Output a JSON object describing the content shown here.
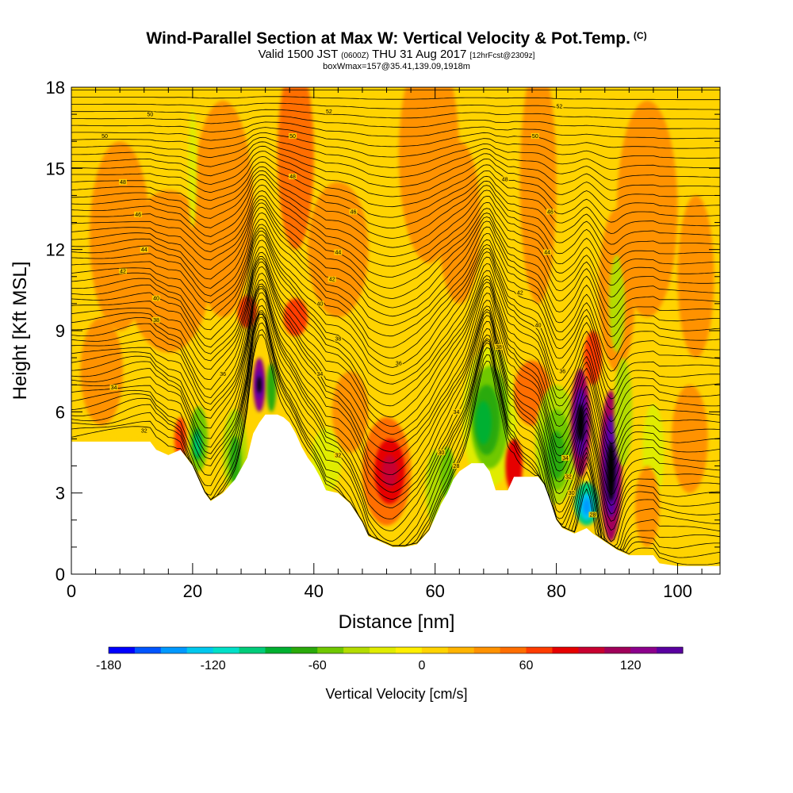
{
  "header": {
    "title": "Wind-Parallel Section at Max W: Vertical Velocity & Pot.Temp.",
    "copyright": "(C)",
    "subtitle_valid": "Valid 1500 JST",
    "subtitle_z": "(0600Z)",
    "subtitle_date": "THU 31 Aug 2017",
    "subtitle_fcst": "[12hrFcst@2309z]",
    "info": "boxWmax=157@35.41,139.09,1918m"
  },
  "chart_data": {
    "type": "heatmap",
    "title": "Wind-Parallel Section at Max W: Vertical Velocity & Pot.Temp.",
    "xlabel": "Distance [nm]",
    "ylabel": "Height [Kft MSL]",
    "xlim": [
      0,
      107
    ],
    "ylim": [
      0,
      18
    ],
    "x_ticks": [
      0,
      20,
      40,
      60,
      80,
      100
    ],
    "y_ticks": [
      0,
      3,
      6,
      9,
      12,
      15,
      18
    ],
    "x_tick_labels": [
      "0",
      "20",
      "40",
      "60",
      "80",
      "100"
    ],
    "y_tick_labels": [
      "0",
      "3",
      "6",
      "9",
      "12",
      "15",
      "18"
    ],
    "background_level": 12,
    "terrain": [
      [
        0,
        4.9
      ],
      [
        13,
        4.9
      ],
      [
        14,
        4.6
      ],
      [
        16,
        4.4
      ],
      [
        18,
        4.6
      ],
      [
        20,
        4.0
      ],
      [
        21,
        3.5
      ],
      [
        22,
        3.0
      ],
      [
        23,
        2.7
      ],
      [
        25,
        3.0
      ],
      [
        27,
        3.5
      ],
      [
        29,
        4.3
      ],
      [
        30,
        5.2
      ],
      [
        31,
        5.6
      ],
      [
        32,
        5.9
      ],
      [
        33,
        5.9
      ],
      [
        34,
        5.9
      ],
      [
        35,
        5.8
      ],
      [
        36,
        5.6
      ],
      [
        37,
        5.2
      ],
      [
        38,
        4.7
      ],
      [
        39,
        4.3
      ],
      [
        40,
        4.0
      ],
      [
        41,
        3.6
      ],
      [
        42,
        3.1
      ],
      [
        44,
        3.0
      ],
      [
        46,
        2.6
      ],
      [
        48,
        1.9
      ],
      [
        49,
        1.4
      ],
      [
        51,
        1.2
      ],
      [
        53,
        1.0
      ],
      [
        55,
        1.0
      ],
      [
        57,
        1.1
      ],
      [
        59,
        1.6
      ],
      [
        60,
        2.1
      ],
      [
        61,
        2.6
      ],
      [
        62,
        3.0
      ],
      [
        63,
        3.5
      ],
      [
        64,
        3.8
      ],
      [
        66,
        4.1
      ],
      [
        68,
        4.1
      ],
      [
        69,
        3.8
      ],
      [
        70,
        3.1
      ],
      [
        72,
        3.1
      ],
      [
        73,
        3.6
      ],
      [
        75,
        3.6
      ],
      [
        77,
        3.6
      ],
      [
        78,
        3.3
      ],
      [
        79,
        2.7
      ],
      [
        80,
        2.0
      ],
      [
        81,
        1.7
      ],
      [
        83,
        1.5
      ],
      [
        85,
        1.7
      ],
      [
        86,
        1.5
      ],
      [
        88,
        1.2
      ],
      [
        90,
        0.9
      ],
      [
        92,
        0.7
      ],
      [
        96,
        0.7
      ],
      [
        97,
        0.4
      ],
      [
        100,
        0.3
      ],
      [
        104,
        0.3
      ],
      [
        107,
        0.3
      ]
    ],
    "cells": [
      {
        "x": 31,
        "y": 7.0,
        "sx": 1.0,
        "sy": 1.0,
        "level": 20,
        "ridge": true
      },
      {
        "x": 31,
        "y": 7.0,
        "sx": 0.6,
        "sy": 0.55,
        "level": 21
      },
      {
        "x": 31,
        "y": 7.0,
        "sx": 0.35,
        "sy": 0.3,
        "level": 22
      },
      {
        "x": 33,
        "y": 6.9,
        "sx": 0.8,
        "sy": 0.9,
        "level": 7
      },
      {
        "x": 37,
        "y": 9.5,
        "sx": 2.0,
        "sy": 0.7,
        "level": 16
      },
      {
        "x": 29,
        "y": 9.7,
        "sx": 1.6,
        "sy": 0.6,
        "level": 16
      },
      {
        "x": 16,
        "y": 11.2,
        "sx": 7.0,
        "sy": 3.0,
        "level": 14
      },
      {
        "x": 8,
        "y": 12.5,
        "sx": 5.0,
        "sy": 3.5,
        "level": 14
      },
      {
        "x": 25,
        "y": 13.5,
        "sx": 5.0,
        "sy": 4.0,
        "level": 14
      },
      {
        "x": 37,
        "y": 15.5,
        "sx": 3.0,
        "sy": 3.5,
        "level": 15
      },
      {
        "x": 18,
        "y": 5.0,
        "sx": 1.0,
        "sy": 0.8,
        "level": 16
      },
      {
        "x": 21,
        "y": 5.0,
        "sx": 1.5,
        "sy": 1.2,
        "level": 8
      },
      {
        "x": 20.8,
        "y": 4.8,
        "sx": 0.8,
        "sy": 0.6,
        "level": 6
      },
      {
        "x": 20.8,
        "y": 4.8,
        "sx": 0.4,
        "sy": 0.4,
        "level": 5
      },
      {
        "x": 27,
        "y": 4.5,
        "sx": 2.0,
        "sy": 1.6,
        "level": 9
      },
      {
        "x": 27,
        "y": 4.2,
        "sx": 1.0,
        "sy": 0.9,
        "level": 7
      },
      {
        "x": 42,
        "y": 4.2,
        "sx": 2.5,
        "sy": 1.2,
        "level": 10
      },
      {
        "x": 52,
        "y": 3.8,
        "sx": 4.0,
        "sy": 2.0,
        "level": 15
      },
      {
        "x": 52.5,
        "y": 3.8,
        "sx": 2.5,
        "sy": 1.2,
        "level": 17
      },
      {
        "x": 52.5,
        "y": 3.8,
        "sx": 1.3,
        "sy": 0.6,
        "level": 18
      },
      {
        "x": 44,
        "y": 12.0,
        "sx": 5.0,
        "sy": 2.5,
        "level": 14
      },
      {
        "x": 60,
        "y": 3.2,
        "sx": 1.5,
        "sy": 1.4,
        "level": 9
      },
      {
        "x": 62,
        "y": 3.7,
        "sx": 1.2,
        "sy": 1.0,
        "level": 8
      },
      {
        "x": 69,
        "y": 5.8,
        "sx": 4.5,
        "sy": 2.6,
        "level": 10
      },
      {
        "x": 69,
        "y": 5.8,
        "sx": 3.2,
        "sy": 1.9,
        "level": 8
      },
      {
        "x": 68.5,
        "y": 5.7,
        "sx": 2.2,
        "sy": 1.3,
        "level": 7
      },
      {
        "x": 68,
        "y": 5.6,
        "sx": 1.3,
        "sy": 0.8,
        "level": 6
      },
      {
        "x": 73,
        "y": 4.0,
        "sx": 1.4,
        "sy": 1.0,
        "level": 17
      },
      {
        "x": 76,
        "y": 6.7,
        "sx": 3.0,
        "sy": 1.2,
        "level": 15
      },
      {
        "x": 80,
        "y": 4.8,
        "sx": 3.5,
        "sy": 2.2,
        "level": 9
      },
      {
        "x": 80,
        "y": 4.6,
        "sx": 2.4,
        "sy": 1.5,
        "level": 8
      },
      {
        "x": 80,
        "y": 4.4,
        "sx": 1.4,
        "sy": 0.9,
        "level": 7
      },
      {
        "x": 85,
        "y": 2.6,
        "sx": 2.0,
        "sy": 0.8,
        "level": 5
      },
      {
        "x": 85,
        "y": 2.5,
        "sx": 1.2,
        "sy": 0.5,
        "level": 3
      },
      {
        "x": 85,
        "y": 2.5,
        "sx": 0.6,
        "sy": 0.3,
        "level": 2
      },
      {
        "x": 84,
        "y": 5.6,
        "sx": 1.6,
        "sy": 2.0,
        "level": 19
      },
      {
        "x": 84,
        "y": 5.6,
        "sx": 1.1,
        "sy": 1.3,
        "level": 21
      },
      {
        "x": 84,
        "y": 5.6,
        "sx": 0.6,
        "sy": 0.7,
        "level": 22
      },
      {
        "x": 89,
        "y": 4.0,
        "sx": 1.8,
        "sy": 2.8,
        "level": 19
      },
      {
        "x": 89,
        "y": 4.0,
        "sx": 1.2,
        "sy": 1.9,
        "level": 21
      },
      {
        "x": 89,
        "y": 3.8,
        "sx": 0.7,
        "sy": 1.1,
        "level": 22
      },
      {
        "x": 86,
        "y": 8.0,
        "sx": 1.5,
        "sy": 1.0,
        "level": 16
      },
      {
        "x": 90,
        "y": 10.5,
        "sx": 3.0,
        "sy": 3.0,
        "level": 14
      },
      {
        "x": 90,
        "y": 10.0,
        "sx": 1.3,
        "sy": 1.8,
        "level": 9
      },
      {
        "x": 91,
        "y": 6.0,
        "sx": 1.5,
        "sy": 2.0,
        "level": 9
      },
      {
        "x": 96,
        "y": 4.5,
        "sx": 1.8,
        "sy": 1.8,
        "level": 10
      },
      {
        "x": 95,
        "y": 2.5,
        "sx": 2.0,
        "sy": 1.5,
        "level": 14
      },
      {
        "x": 95,
        "y": 13.5,
        "sx": 5.0,
        "sy": 4.0,
        "level": 14
      },
      {
        "x": 103,
        "y": 11.0,
        "sx": 3.0,
        "sy": 3.0,
        "level": 14
      },
      {
        "x": 102,
        "y": 5.0,
        "sx": 3.0,
        "sy": 2.0,
        "level": 14
      },
      {
        "x": 59,
        "y": 15.5,
        "sx": 5.0,
        "sy": 4.0,
        "level": 14
      },
      {
        "x": 64,
        "y": 13.0,
        "sx": 3.5,
        "sy": 3.0,
        "level": 14
      },
      {
        "x": 77,
        "y": 14.5,
        "sx": 3.0,
        "sy": 4.5,
        "level": 14
      },
      {
        "x": 5,
        "y": 7.5,
        "sx": 3.5,
        "sy": 2.0,
        "level": 14
      },
      {
        "x": 46,
        "y": 6.0,
        "sx": 3.0,
        "sy": 1.5,
        "level": 14
      },
      {
        "x": 20,
        "y": 15.0,
        "sx": 0.7,
        "sy": 2.2,
        "level": 10
      }
    ],
    "theta_lines": {
      "count": 52,
      "top": 17.9,
      "descend": [
        [
          31,
          3.2,
          2.5,
          4.5
        ],
        [
          52,
          -1.5,
          5.0,
          3.0
        ],
        [
          69,
          4.0,
          3.0,
          3.5
        ],
        [
          80,
          -2.0,
          2.5,
          3.5
        ],
        [
          85,
          1.5,
          1.5,
          2.0
        ],
        [
          89,
          -2.5,
          2.0,
          3.0
        ],
        [
          21,
          -1.0,
          3.0,
          2.5
        ],
        [
          12,
          0.5,
          6.0,
          3.0
        ]
      ]
    },
    "theta_labels": [
      {
        "x": 13,
        "y": 17.0,
        "text": "50"
      },
      {
        "x": 5.5,
        "y": 16.2,
        "text": "50"
      },
      {
        "x": 8.5,
        "y": 14.5,
        "text": "48"
      },
      {
        "x": 11,
        "y": 13.3,
        "text": "46"
      },
      {
        "x": 12,
        "y": 12.0,
        "text": "44"
      },
      {
        "x": 8.5,
        "y": 11.2,
        "text": "42"
      },
      {
        "x": 14,
        "y": 10.2,
        "text": "40"
      },
      {
        "x": 14,
        "y": 9.4,
        "text": "38"
      },
      {
        "x": 7,
        "y": 6.9,
        "text": "34"
      },
      {
        "x": 12,
        "y": 5.3,
        "text": "32"
      },
      {
        "x": 42.5,
        "y": 17.1,
        "text": "52"
      },
      {
        "x": 36.5,
        "y": 16.2,
        "text": "50"
      },
      {
        "x": 36.5,
        "y": 14.7,
        "text": "48"
      },
      {
        "x": 46.5,
        "y": 13.4,
        "text": "46"
      },
      {
        "x": 44,
        "y": 11.9,
        "text": "44"
      },
      {
        "x": 43,
        "y": 10.9,
        "text": "42"
      },
      {
        "x": 41,
        "y": 10.0,
        "text": "40"
      },
      {
        "x": 44,
        "y": 8.7,
        "text": "38"
      },
      {
        "x": 25,
        "y": 7.4,
        "text": "36"
      },
      {
        "x": 41,
        "y": 7.4,
        "text": "34"
      },
      {
        "x": 54,
        "y": 7.8,
        "text": "36"
      },
      {
        "x": 44,
        "y": 4.4,
        "text": "32"
      },
      {
        "x": 63.5,
        "y": 6.0,
        "text": "34"
      },
      {
        "x": 61,
        "y": 4.5,
        "text": "30"
      },
      {
        "x": 63.5,
        "y": 4.0,
        "text": "28"
      },
      {
        "x": 80.5,
        "y": 17.3,
        "text": "52"
      },
      {
        "x": 76.5,
        "y": 16.2,
        "text": "50"
      },
      {
        "x": 71.5,
        "y": 14.6,
        "text": "48"
      },
      {
        "x": 79,
        "y": 13.4,
        "text": "46"
      },
      {
        "x": 78.5,
        "y": 11.9,
        "text": "44"
      },
      {
        "x": 74,
        "y": 10.4,
        "text": "42"
      },
      {
        "x": 77,
        "y": 9.2,
        "text": "40"
      },
      {
        "x": 70.5,
        "y": 8.4,
        "text": "38"
      },
      {
        "x": 81,
        "y": 7.5,
        "text": "36"
      },
      {
        "x": 81.5,
        "y": 4.3,
        "text": "34"
      },
      {
        "x": 82,
        "y": 3.6,
        "text": "32"
      },
      {
        "x": 82.5,
        "y": 3.0,
        "text": "30"
      },
      {
        "x": 86,
        "y": 2.2,
        "text": "28"
      }
    ],
    "colorbar": {
      "levels": [
        -180,
        -165,
        -150,
        -135,
        -120,
        -105,
        -90,
        -75,
        -60,
        -45,
        -30,
        -15,
        0,
        15,
        30,
        45,
        60,
        75,
        90,
        105,
        120,
        135
      ],
      "colors": [
        "#0000ff",
        "#0055ff",
        "#0099ff",
        "#00c8ee",
        "#00e0c8",
        "#00cc7a",
        "#00b030",
        "#2aaa0a",
        "#70c800",
        "#b4dc00",
        "#e0ec00",
        "#ffef00",
        "#ffd300",
        "#ffb400",
        "#ff9200",
        "#ff6e00",
        "#ff3c00",
        "#e60000",
        "#c80030",
        "#a0005a",
        "#8c008c",
        "#5a00a0"
      ],
      "tick_values": [
        -180,
        -120,
        -60,
        0,
        60,
        120
      ],
      "tick_labels": [
        "-180",
        "-120",
        "-60",
        "0",
        "60",
        "120"
      ],
      "title": "Vertical Velocity [cm/s]"
    }
  }
}
